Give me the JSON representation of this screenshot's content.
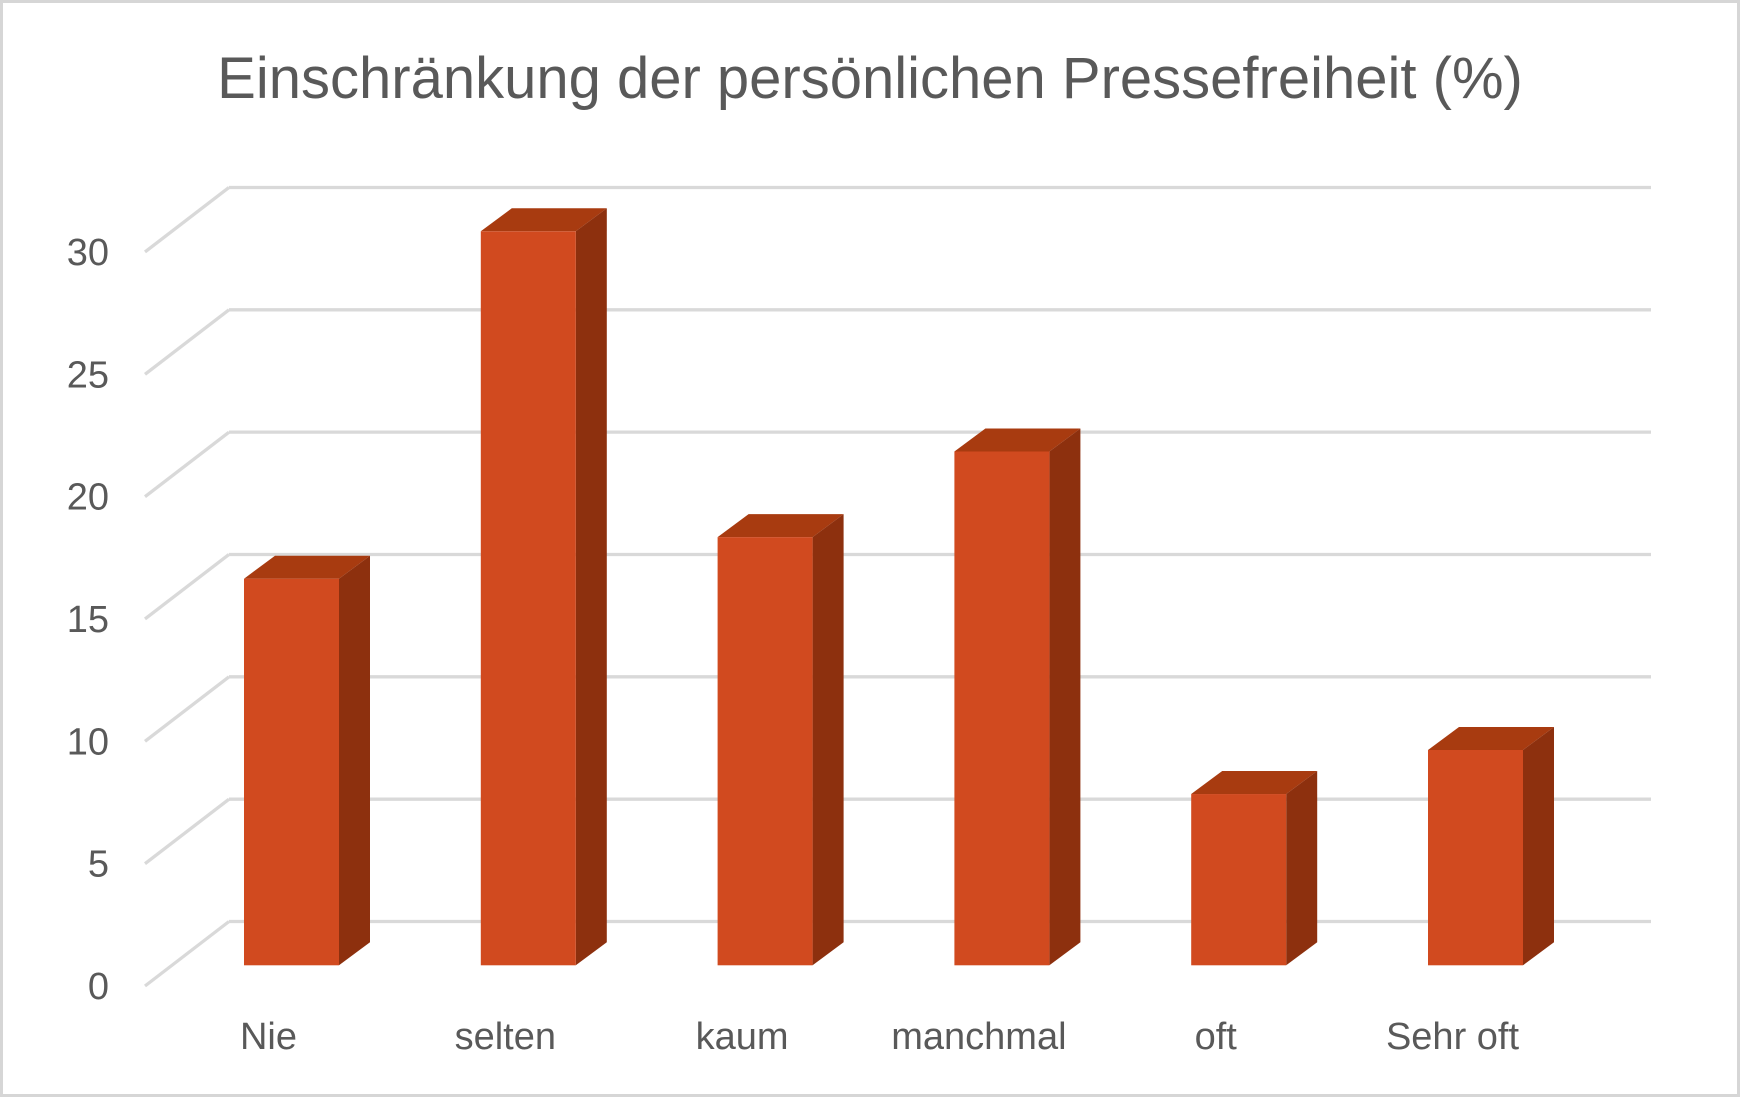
{
  "frame": {
    "border_color": "#d6d6d6",
    "background": "#ffffff"
  },
  "chart_data": {
    "type": "bar",
    "subtype": "3d-column",
    "title": "Einschränkung der persönlichen Pressefreiheit (%)",
    "categories": [
      "Nie",
      "selten",
      "kaum",
      "manchmal",
      "oft",
      "Sehr oft"
    ],
    "values": [
      15.8,
      30,
      17.5,
      21,
      7,
      8.8
    ],
    "xlabel": "",
    "ylabel": "",
    "ylim": [
      0,
      30
    ],
    "yticks": [
      0,
      5,
      10,
      15,
      20,
      25,
      30
    ],
    "grid": true,
    "legend": false,
    "colors": {
      "bar_front": "#d14a1f",
      "bar_top": "#a83b10",
      "bar_side": "#8d300e",
      "gridline": "#d9d9d9",
      "text": "#595959"
    }
  }
}
